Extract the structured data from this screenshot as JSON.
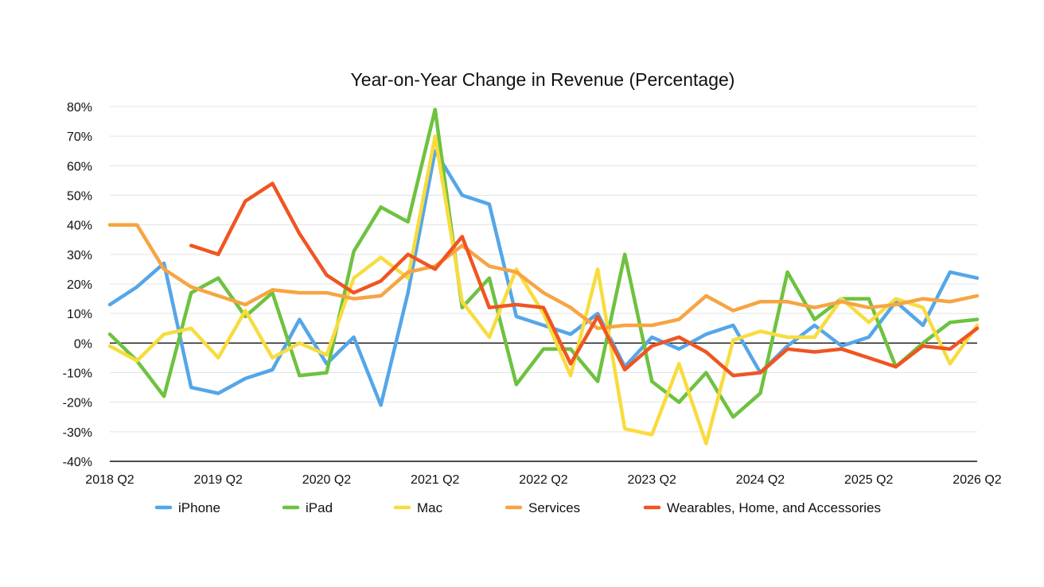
{
  "chart_data": {
    "type": "line",
    "title": "Year-on-Year Change in Revenue (Percentage)",
    "xlabel": "",
    "ylabel": "",
    "ylim": [
      -40,
      80
    ],
    "y_ticks": [
      {
        "value": 80,
        "label": "80%"
      },
      {
        "value": 70,
        "label": "70%"
      },
      {
        "value": 60,
        "label": "60%"
      },
      {
        "value": 50,
        "label": "50%"
      },
      {
        "value": 40,
        "label": "40%"
      },
      {
        "value": 30,
        "label": "30%"
      },
      {
        "value": 20,
        "label": "20%"
      },
      {
        "value": 10,
        "label": "10%"
      },
      {
        "value": 0,
        "label": "0%"
      },
      {
        "value": -10,
        "label": "-10%"
      },
      {
        "value": -20,
        "label": "-20%"
      },
      {
        "value": -30,
        "label": "-30%"
      },
      {
        "value": -40,
        "label": "-40%"
      }
    ],
    "x_ticks": [
      {
        "index": 0,
        "label": "2018 Q2"
      },
      {
        "index": 4,
        "label": "2019 Q2"
      },
      {
        "index": 8,
        "label": "2020 Q2"
      },
      {
        "index": 12,
        "label": "2021 Q2"
      },
      {
        "index": 16,
        "label": "2022 Q2"
      },
      {
        "index": 20,
        "label": "2023 Q2"
      },
      {
        "index": 24,
        "label": "2024 Q2"
      },
      {
        "index": 28,
        "label": "2025 Q2"
      },
      {
        "index": 32,
        "label": "2026 Q2"
      }
    ],
    "categories": [
      "2018 Q2",
      "2018 Q3",
      "2018 Q4",
      "2019 Q1",
      "2019 Q2",
      "2019 Q3",
      "2019 Q4",
      "2020 Q1",
      "2020 Q2",
      "2020 Q3",
      "2020 Q4",
      "2021 Q1",
      "2021 Q2",
      "2021 Q3",
      "2021 Q4",
      "2022 Q1",
      "2022 Q2",
      "2022 Q3",
      "2022 Q4",
      "2023 Q1",
      "2023 Q2",
      "2023 Q3",
      "2023 Q4",
      "2024 Q1",
      "2024 Q2",
      "2024 Q3",
      "2024 Q4",
      "2025 Q1",
      "2025 Q2",
      "2025 Q3",
      "2025 Q4",
      "2026 Q1",
      "2026 Q2"
    ],
    "grid": true,
    "legend_position": "bottom",
    "series": [
      {
        "name": "iPhone",
        "color": "#55a6e8",
        "values": [
          13,
          19,
          27,
          -15,
          -17,
          -12,
          -9,
          8,
          -7,
          2,
          -21,
          17,
          65,
          50,
          47,
          9,
          6,
          3,
          10,
          -8,
          2,
          -2,
          3,
          6,
          -10,
          -1,
          6,
          -1,
          2,
          14,
          6,
          24,
          22
        ]
      },
      {
        "name": "iPad",
        "color": "#6ec23f",
        "values": [
          3,
          -6,
          -18,
          17,
          22,
          9,
          17,
          -11,
          -10,
          31,
          46,
          41,
          79,
          12,
          22,
          -14,
          -2,
          -2,
          -13,
          30,
          -13,
          -20,
          -10,
          -25,
          -17,
          24,
          8,
          15,
          15,
          -8,
          0,
          7,
          8
        ]
      },
      {
        "name": "Mac",
        "color": "#f8dc3f",
        "values": [
          -1,
          -6,
          3,
          5,
          -5,
          11,
          -5,
          0,
          -4,
          22,
          29,
          22,
          70,
          14,
          2,
          25,
          10,
          -11,
          25,
          -29,
          -31,
          -7,
          -34,
          1,
          4,
          2,
          2,
          15,
          7,
          15,
          12,
          -7,
          6
        ]
      },
      {
        "name": "Services",
        "color": "#f7a442",
        "values": [
          40,
          40,
          25,
          19,
          16,
          13,
          18,
          17,
          17,
          15,
          16,
          24,
          26,
          33,
          26,
          24,
          17,
          12,
          5,
          6,
          6,
          8,
          16,
          11,
          14,
          14,
          12,
          14,
          12,
          13,
          15,
          14,
          16
        ]
      },
      {
        "name": "Wearables, Home, and Accessories",
        "color": "#ef5522",
        "values": [
          null,
          null,
          null,
          33,
          30,
          48,
          54,
          37,
          23,
          17,
          21,
          30,
          25,
          36,
          12,
          13,
          12,
          -7,
          9,
          -9,
          -1,
          2,
          -3,
          -11,
          -10,
          -2,
          -3,
          -2,
          -5,
          -8,
          -1,
          -2,
          5
        ]
      }
    ]
  }
}
